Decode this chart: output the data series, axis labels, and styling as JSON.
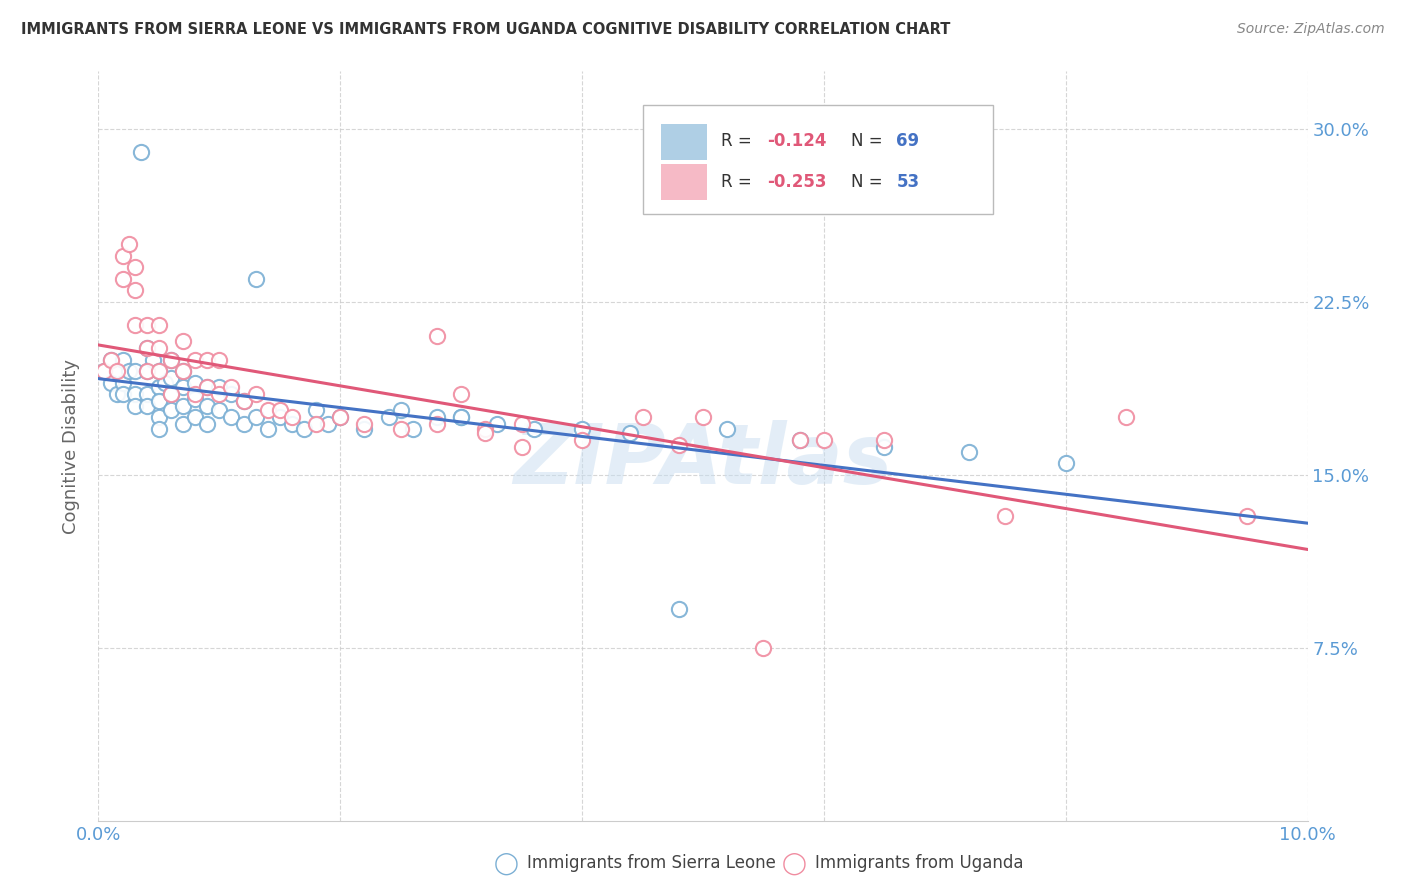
{
  "title": "IMMIGRANTS FROM SIERRA LEONE VS IMMIGRANTS FROM UGANDA COGNITIVE DISABILITY CORRELATION CHART",
  "source": "Source: ZipAtlas.com",
  "ylabel": "Cognitive Disability",
  "sierra_leone_R": -0.124,
  "sierra_leone_N": 69,
  "uganda_R": -0.253,
  "uganda_N": 53,
  "sierra_leone_color": "#7bafd4",
  "uganda_color": "#f08ca0",
  "sierra_leone_line_color": "#4472c4",
  "uganda_line_color": "#e05878",
  "tick_label_color": "#5b9bd5",
  "ylabel_color": "#666666",
  "title_color": "#333333",
  "source_color": "#888888",
  "background_color": "#ffffff",
  "grid_color": "#cccccc",
  "legend_text_color": "#333333",
  "legend_R_color": "#e05878",
  "legend_N_color": "#4472c4",
  "watermark_color": "#c8ddf0",
  "watermark_text": "ZIPAtlas",
  "xmin": 0.0,
  "xmax": 0.1,
  "ymin": 0.0,
  "ymax": 0.325,
  "x_tick_positions": [
    0.0,
    0.02,
    0.04,
    0.06,
    0.08,
    0.1
  ],
  "x_tick_labels": [
    "0.0%",
    "",
    "",
    "",
    "",
    "10.0%"
  ],
  "y_tick_positions": [
    0.075,
    0.15,
    0.225,
    0.3
  ],
  "y_tick_labels": [
    "7.5%",
    "15.0%",
    "22.5%",
    "30.0%"
  ],
  "sierra_leone_x": [
    0.0005,
    0.001,
    0.001,
    0.0015,
    0.002,
    0.002,
    0.002,
    0.0025,
    0.003,
    0.003,
    0.003,
    0.0035,
    0.004,
    0.004,
    0.004,
    0.004,
    0.0045,
    0.005,
    0.005,
    0.005,
    0.005,
    0.005,
    0.0055,
    0.006,
    0.006,
    0.006,
    0.006,
    0.007,
    0.007,
    0.007,
    0.007,
    0.008,
    0.008,
    0.008,
    0.009,
    0.009,
    0.009,
    0.01,
    0.01,
    0.011,
    0.011,
    0.012,
    0.012,
    0.013,
    0.013,
    0.014,
    0.015,
    0.016,
    0.017,
    0.018,
    0.019,
    0.02,
    0.022,
    0.024,
    0.026,
    0.028,
    0.03,
    0.033,
    0.036,
    0.04,
    0.044,
    0.048,
    0.052,
    0.058,
    0.065,
    0.072,
    0.08,
    0.03,
    0.025
  ],
  "sierra_leone_y": [
    0.195,
    0.2,
    0.19,
    0.185,
    0.2,
    0.19,
    0.185,
    0.195,
    0.195,
    0.185,
    0.18,
    0.29,
    0.205,
    0.195,
    0.185,
    0.18,
    0.2,
    0.195,
    0.188,
    0.182,
    0.175,
    0.17,
    0.19,
    0.2,
    0.192,
    0.185,
    0.178,
    0.195,
    0.188,
    0.18,
    0.172,
    0.19,
    0.183,
    0.175,
    0.188,
    0.18,
    0.172,
    0.188,
    0.178,
    0.185,
    0.175,
    0.182,
    0.172,
    0.235,
    0.175,
    0.17,
    0.175,
    0.172,
    0.17,
    0.178,
    0.172,
    0.175,
    0.17,
    0.175,
    0.17,
    0.175,
    0.175,
    0.172,
    0.17,
    0.17,
    0.168,
    0.092,
    0.17,
    0.165,
    0.162,
    0.16,
    0.155,
    0.175,
    0.178
  ],
  "uganda_x": [
    0.0005,
    0.001,
    0.0015,
    0.002,
    0.002,
    0.0025,
    0.003,
    0.003,
    0.003,
    0.004,
    0.004,
    0.004,
    0.005,
    0.005,
    0.005,
    0.006,
    0.006,
    0.007,
    0.007,
    0.008,
    0.008,
    0.009,
    0.009,
    0.01,
    0.01,
    0.011,
    0.012,
    0.013,
    0.014,
    0.015,
    0.016,
    0.018,
    0.02,
    0.022,
    0.025,
    0.028,
    0.032,
    0.035,
    0.04,
    0.045,
    0.05,
    0.058,
    0.065,
    0.075,
    0.085,
    0.095,
    0.028,
    0.03,
    0.032,
    0.035,
    0.048,
    0.055,
    0.06
  ],
  "uganda_y": [
    0.195,
    0.2,
    0.195,
    0.245,
    0.235,
    0.25,
    0.24,
    0.23,
    0.215,
    0.215,
    0.205,
    0.195,
    0.215,
    0.205,
    0.195,
    0.2,
    0.185,
    0.208,
    0.195,
    0.2,
    0.185,
    0.2,
    0.188,
    0.2,
    0.185,
    0.188,
    0.182,
    0.185,
    0.178,
    0.178,
    0.175,
    0.172,
    0.175,
    0.172,
    0.17,
    0.21,
    0.17,
    0.172,
    0.165,
    0.175,
    0.175,
    0.165,
    0.165,
    0.132,
    0.175,
    0.132,
    0.172,
    0.185,
    0.168,
    0.162,
    0.163,
    0.075,
    0.165
  ],
  "bottom_legend": [
    "Immigrants from Sierra Leone",
    "Immigrants from Uganda"
  ]
}
